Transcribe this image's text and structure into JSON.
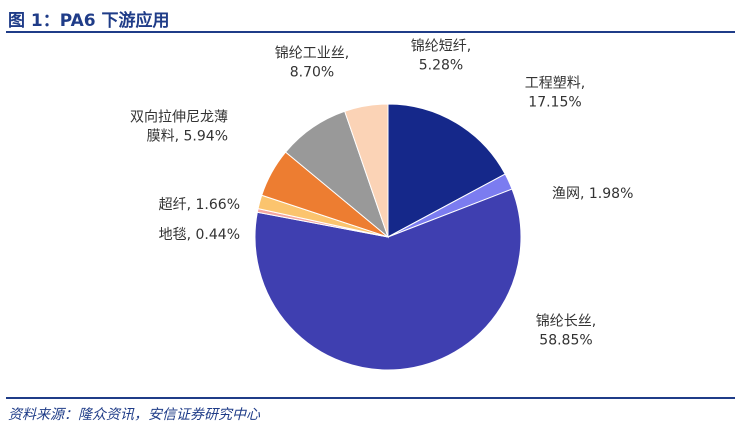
{
  "figure": {
    "title": "图 1：PA6 下游应用",
    "source": "资料来源：隆众资讯，安信证券研究中心"
  },
  "chart_data": {
    "type": "pie",
    "title": "",
    "slices": [
      {
        "name": "工程塑料",
        "value": 17.15,
        "value_label": "17.15%",
        "color": "#15288a"
      },
      {
        "name": "渔网",
        "value": 1.98,
        "value_label": "1.98%",
        "color": "#7b7cf0"
      },
      {
        "name": "锦纶长丝",
        "value": 58.85,
        "value_label": "58.85%",
        "color": "#3f3fb0"
      },
      {
        "name": "地毯",
        "value": 0.44,
        "value_label": "0.44%",
        "color": "#f4a6a0"
      },
      {
        "name": "超纤",
        "value": 1.66,
        "value_label": "1.66%",
        "color": "#fbc46e"
      },
      {
        "name": "双向拉伸尼龙薄膜料",
        "value": 5.94,
        "value_label": "5.94%",
        "color": "#ed7d31"
      },
      {
        "name": "锦纶工业丝",
        "value": 8.7,
        "value_label": "8.70%",
        "color": "#999999"
      },
      {
        "name": "锦纶短纤",
        "value": 5.28,
        "value_label": "5.28%",
        "color": "#fbd3b6"
      }
    ]
  }
}
